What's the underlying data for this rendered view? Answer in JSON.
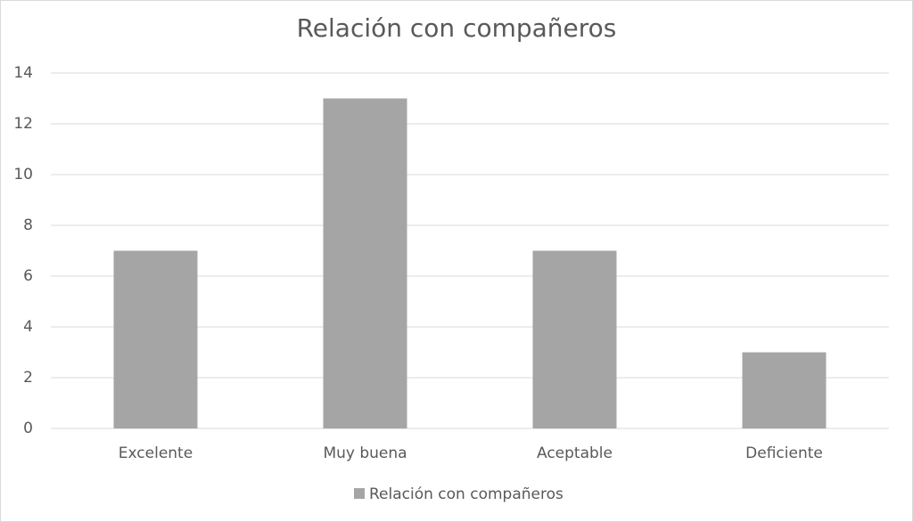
{
  "chart_data": {
    "type": "bar",
    "title": "Relación con compañeros",
    "categories": [
      "Excelente",
      "Muy buena",
      "Aceptable",
      "Deficiente"
    ],
    "series": [
      {
        "name": "Relación con compañeros",
        "color": "#a5a5a5",
        "values": [
          7,
          13,
          7,
          3
        ]
      }
    ],
    "ylim": [
      0,
      14
    ],
    "yticks": [
      0,
      2,
      4,
      6,
      8,
      10,
      12,
      14
    ],
    "grid": true,
    "legend": "bottom"
  }
}
